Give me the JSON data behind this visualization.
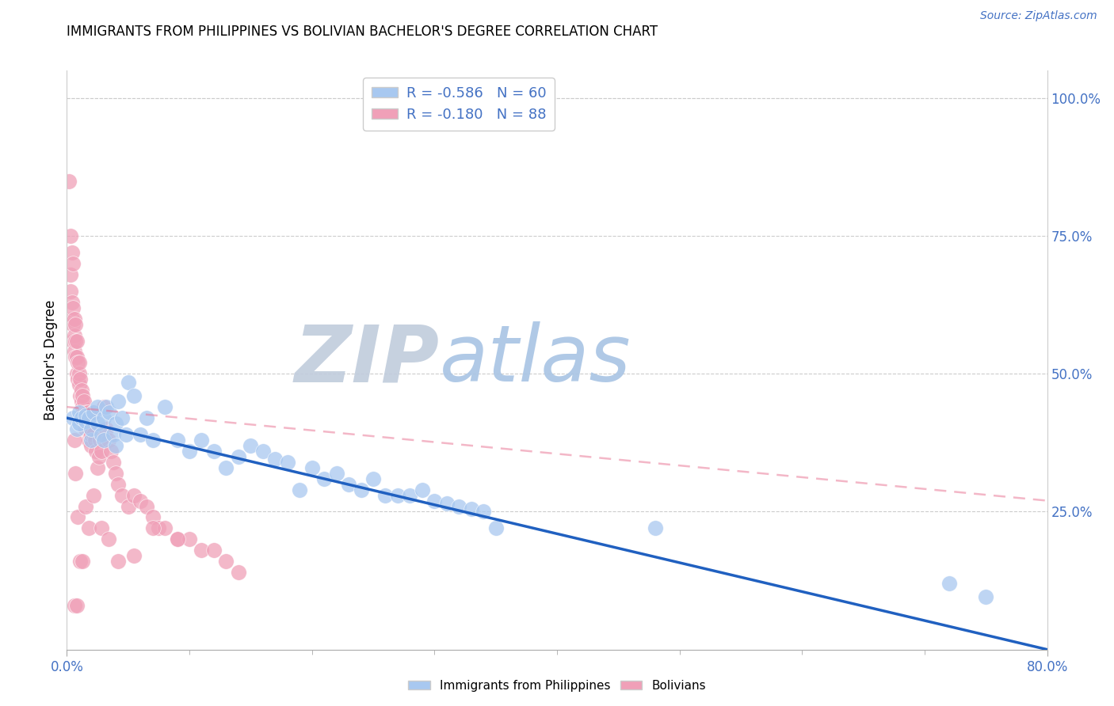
{
  "title": "IMMIGRANTS FROM PHILIPPINES VS BOLIVIAN BACHELOR'S DEGREE CORRELATION CHART",
  "source": "Source: ZipAtlas.com",
  "ylabel": "Bachelor's Degree",
  "right_yticks": [
    "100.0%",
    "75.0%",
    "50.0%",
    "25.0%"
  ],
  "right_ytick_vals": [
    1.0,
    0.75,
    0.5,
    0.25
  ],
  "legend1_r": "-0.586",
  "legend1_n": "60",
  "legend2_r": "-0.180",
  "legend2_n": "88",
  "blue_color": "#A8C8F0",
  "pink_color": "#F0A0B8",
  "blue_line_color": "#2060C0",
  "pink_line_color": "#E87090",
  "watermark_zip": "ZIP",
  "watermark_atlas": "atlas",
  "watermark_zip_color": "#C8D4E8",
  "watermark_atlas_color": "#A8C0E0",
  "blue_scatter_x": [
    0.005,
    0.008,
    0.01,
    0.01,
    0.012,
    0.015,
    0.015,
    0.018,
    0.02,
    0.02,
    0.022,
    0.025,
    0.025,
    0.028,
    0.03,
    0.03,
    0.032,
    0.035,
    0.038,
    0.04,
    0.04,
    0.042,
    0.045,
    0.048,
    0.05,
    0.055,
    0.06,
    0.065,
    0.07,
    0.08,
    0.09,
    0.1,
    0.11,
    0.12,
    0.13,
    0.14,
    0.15,
    0.16,
    0.17,
    0.18,
    0.19,
    0.2,
    0.21,
    0.22,
    0.23,
    0.24,
    0.25,
    0.26,
    0.27,
    0.28,
    0.29,
    0.3,
    0.31,
    0.32,
    0.33,
    0.34,
    0.35,
    0.48,
    0.72,
    0.75
  ],
  "blue_scatter_y": [
    0.42,
    0.4,
    0.43,
    0.41,
    0.42,
    0.415,
    0.425,
    0.42,
    0.38,
    0.4,
    0.43,
    0.41,
    0.44,
    0.39,
    0.38,
    0.42,
    0.44,
    0.43,
    0.39,
    0.37,
    0.41,
    0.45,
    0.42,
    0.39,
    0.485,
    0.46,
    0.39,
    0.42,
    0.38,
    0.44,
    0.38,
    0.36,
    0.38,
    0.36,
    0.33,
    0.35,
    0.37,
    0.36,
    0.345,
    0.34,
    0.29,
    0.33,
    0.31,
    0.32,
    0.3,
    0.29,
    0.31,
    0.28,
    0.28,
    0.28,
    0.29,
    0.27,
    0.265,
    0.26,
    0.255,
    0.25,
    0.22,
    0.22,
    0.12,
    0.095
  ],
  "pink_scatter_x": [
    0.002,
    0.003,
    0.003,
    0.004,
    0.004,
    0.005,
    0.005,
    0.005,
    0.006,
    0.006,
    0.006,
    0.007,
    0.007,
    0.007,
    0.008,
    0.008,
    0.008,
    0.009,
    0.009,
    0.01,
    0.01,
    0.01,
    0.011,
    0.011,
    0.012,
    0.012,
    0.013,
    0.013,
    0.014,
    0.014,
    0.015,
    0.015,
    0.016,
    0.016,
    0.017,
    0.018,
    0.018,
    0.019,
    0.02,
    0.02,
    0.021,
    0.022,
    0.023,
    0.024,
    0.025,
    0.026,
    0.027,
    0.028,
    0.03,
    0.032,
    0.034,
    0.036,
    0.038,
    0.04,
    0.042,
    0.045,
    0.05,
    0.055,
    0.06,
    0.065,
    0.07,
    0.075,
    0.08,
    0.09,
    0.1,
    0.11,
    0.12,
    0.13,
    0.14,
    0.003,
    0.004,
    0.005,
    0.006,
    0.007,
    0.009,
    0.011,
    0.013,
    0.015,
    0.018,
    0.022,
    0.028,
    0.034,
    0.042,
    0.055,
    0.07,
    0.09,
    0.006,
    0.008
  ],
  "pink_scatter_y": [
    0.85,
    0.65,
    0.68,
    0.6,
    0.63,
    0.56,
    0.59,
    0.62,
    0.54,
    0.57,
    0.6,
    0.53,
    0.56,
    0.59,
    0.5,
    0.53,
    0.56,
    0.49,
    0.52,
    0.48,
    0.5,
    0.52,
    0.46,
    0.49,
    0.45,
    0.47,
    0.44,
    0.46,
    0.43,
    0.45,
    0.4,
    0.42,
    0.41,
    0.43,
    0.43,
    0.38,
    0.4,
    0.39,
    0.37,
    0.39,
    0.43,
    0.39,
    0.38,
    0.36,
    0.33,
    0.35,
    0.38,
    0.36,
    0.44,
    0.4,
    0.38,
    0.36,
    0.34,
    0.32,
    0.3,
    0.28,
    0.26,
    0.28,
    0.27,
    0.26,
    0.24,
    0.22,
    0.22,
    0.2,
    0.2,
    0.18,
    0.18,
    0.16,
    0.14,
    0.75,
    0.72,
    0.7,
    0.38,
    0.32,
    0.24,
    0.16,
    0.16,
    0.26,
    0.22,
    0.28,
    0.22,
    0.2,
    0.16,
    0.17,
    0.22,
    0.2,
    0.08,
    0.08
  ],
  "xlim": [
    0.0,
    0.8
  ],
  "ylim": [
    0.0,
    1.05
  ],
  "blue_trend_x0": 0.0,
  "blue_trend_y0": 0.42,
  "blue_trend_x1": 0.8,
  "blue_trend_y1": 0.0,
  "pink_trend_x0": 0.0,
  "pink_trend_y0": 0.44,
  "pink_trend_x1": 0.8,
  "pink_trend_y1": 0.27
}
